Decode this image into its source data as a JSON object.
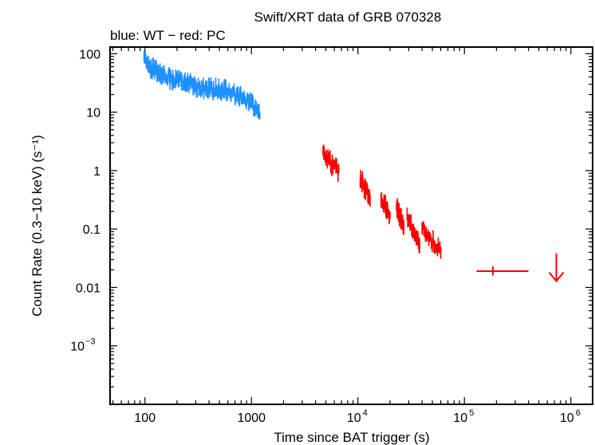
{
  "chart_data": {
    "type": "scatter",
    "title": "Swift/XRT data of GRB 070328",
    "subtitle": "blue: WT − red: PC",
    "xlabel": "Time since BAT trigger (s)",
    "ylabel": "Count Rate (0.3−10 keV) (s⁻¹)",
    "xscale": "log",
    "yscale": "log",
    "xlim": [
      47,
      1600000
    ],
    "ylim": [
      0.0001,
      130
    ],
    "grid": false,
    "x_ticks": [
      {
        "value": 100,
        "label": "100"
      },
      {
        "value": 1000,
        "label": "1000"
      },
      {
        "value": 10000,
        "base": "10",
        "exp": "4"
      },
      {
        "value": 100000,
        "base": "10",
        "exp": "5"
      },
      {
        "value": 1000000,
        "base": "10",
        "exp": "6"
      }
    ],
    "y_ticks": [
      {
        "value": 100,
        "label": "100"
      },
      {
        "value": 10,
        "label": "10"
      },
      {
        "value": 1,
        "label": "1"
      },
      {
        "value": 0.1,
        "label": "0.1"
      },
      {
        "value": 0.01,
        "label": "0.01"
      },
      {
        "value": 0.001,
        "base": "10",
        "exp": "−3"
      }
    ],
    "series": [
      {
        "mode": "WT",
        "color": "#1e90ff",
        "x_range": [
          98,
          1200
        ],
        "anchors": [
          {
            "t": 98,
            "rate": 80
          },
          {
            "t": 120,
            "rate": 55
          },
          {
            "t": 150,
            "rate": 42
          },
          {
            "t": 200,
            "rate": 35
          },
          {
            "t": 300,
            "rate": 28
          },
          {
            "t": 500,
            "rate": 24
          },
          {
            "t": 800,
            "rate": 19
          },
          {
            "t": 1000,
            "rate": 14
          },
          {
            "t": 1200,
            "rate": 10
          }
        ]
      },
      {
        "mode": "PC",
        "color": "#ff0000",
        "segments": [
          {
            "x_range": [
              4700,
              6600
            ],
            "rate_start": 2.0,
            "rate_end": 0.9
          },
          {
            "x_range": [
              10500,
              13000
            ],
            "rate_start": 0.7,
            "rate_end": 0.35
          },
          {
            "x_range": [
              16500,
              20000
            ],
            "rate_start": 0.35,
            "rate_end": 0.16
          },
          {
            "x_range": [
              23000,
              27000
            ],
            "rate_start": 0.25,
            "rate_end": 0.1
          },
          {
            "x_range": [
              29000,
              38000
            ],
            "rate_start": 0.15,
            "rate_end": 0.06
          },
          {
            "x_range": [
              40000,
              60000
            ],
            "rate_start": 0.1,
            "rate_end": 0.04
          }
        ],
        "binned_points": [
          {
            "t": 185000,
            "rate": 0.019,
            "t_low": 130000,
            "t_high": 400000,
            "rate_low": 0.016,
            "rate_high": 0.023
          }
        ],
        "upper_limits": [
          {
            "t": 730000,
            "rate": 0.016
          }
        ]
      }
    ]
  }
}
